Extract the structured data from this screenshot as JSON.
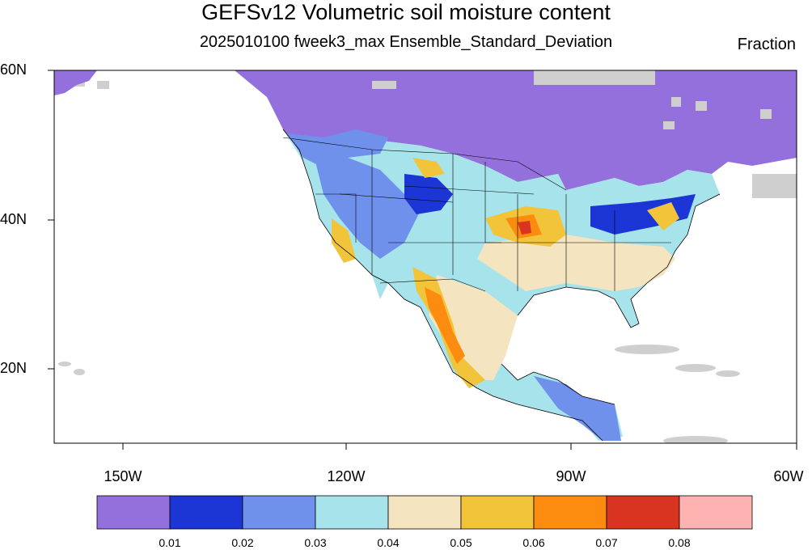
{
  "header": {
    "title": "GEFSv12 Volumetric soil moisture content",
    "subtitle": "2025010100 fweek3_max Ensemble_Standard_Deviation",
    "units": "Fraction"
  },
  "map": {
    "lat_labels": [
      "60N",
      "40N",
      "20N"
    ],
    "lon_labels": [
      "150W",
      "120W",
      "90W",
      "60W"
    ],
    "colors": {
      "land_missing": "#cfcfcf",
      "border": "#000000"
    }
  },
  "colorbar": {
    "colors": [
      "#9370db",
      "#1c36d6",
      "#6f91ec",
      "#a6e3ea",
      "#f4e4bf",
      "#f2c43a",
      "#fb8c10",
      "#d93420",
      "#ffb2b2"
    ],
    "labels": [
      "0.01",
      "0.02",
      "0.03",
      "0.04",
      "0.05",
      "0.06",
      "0.07",
      "0.08"
    ]
  }
}
